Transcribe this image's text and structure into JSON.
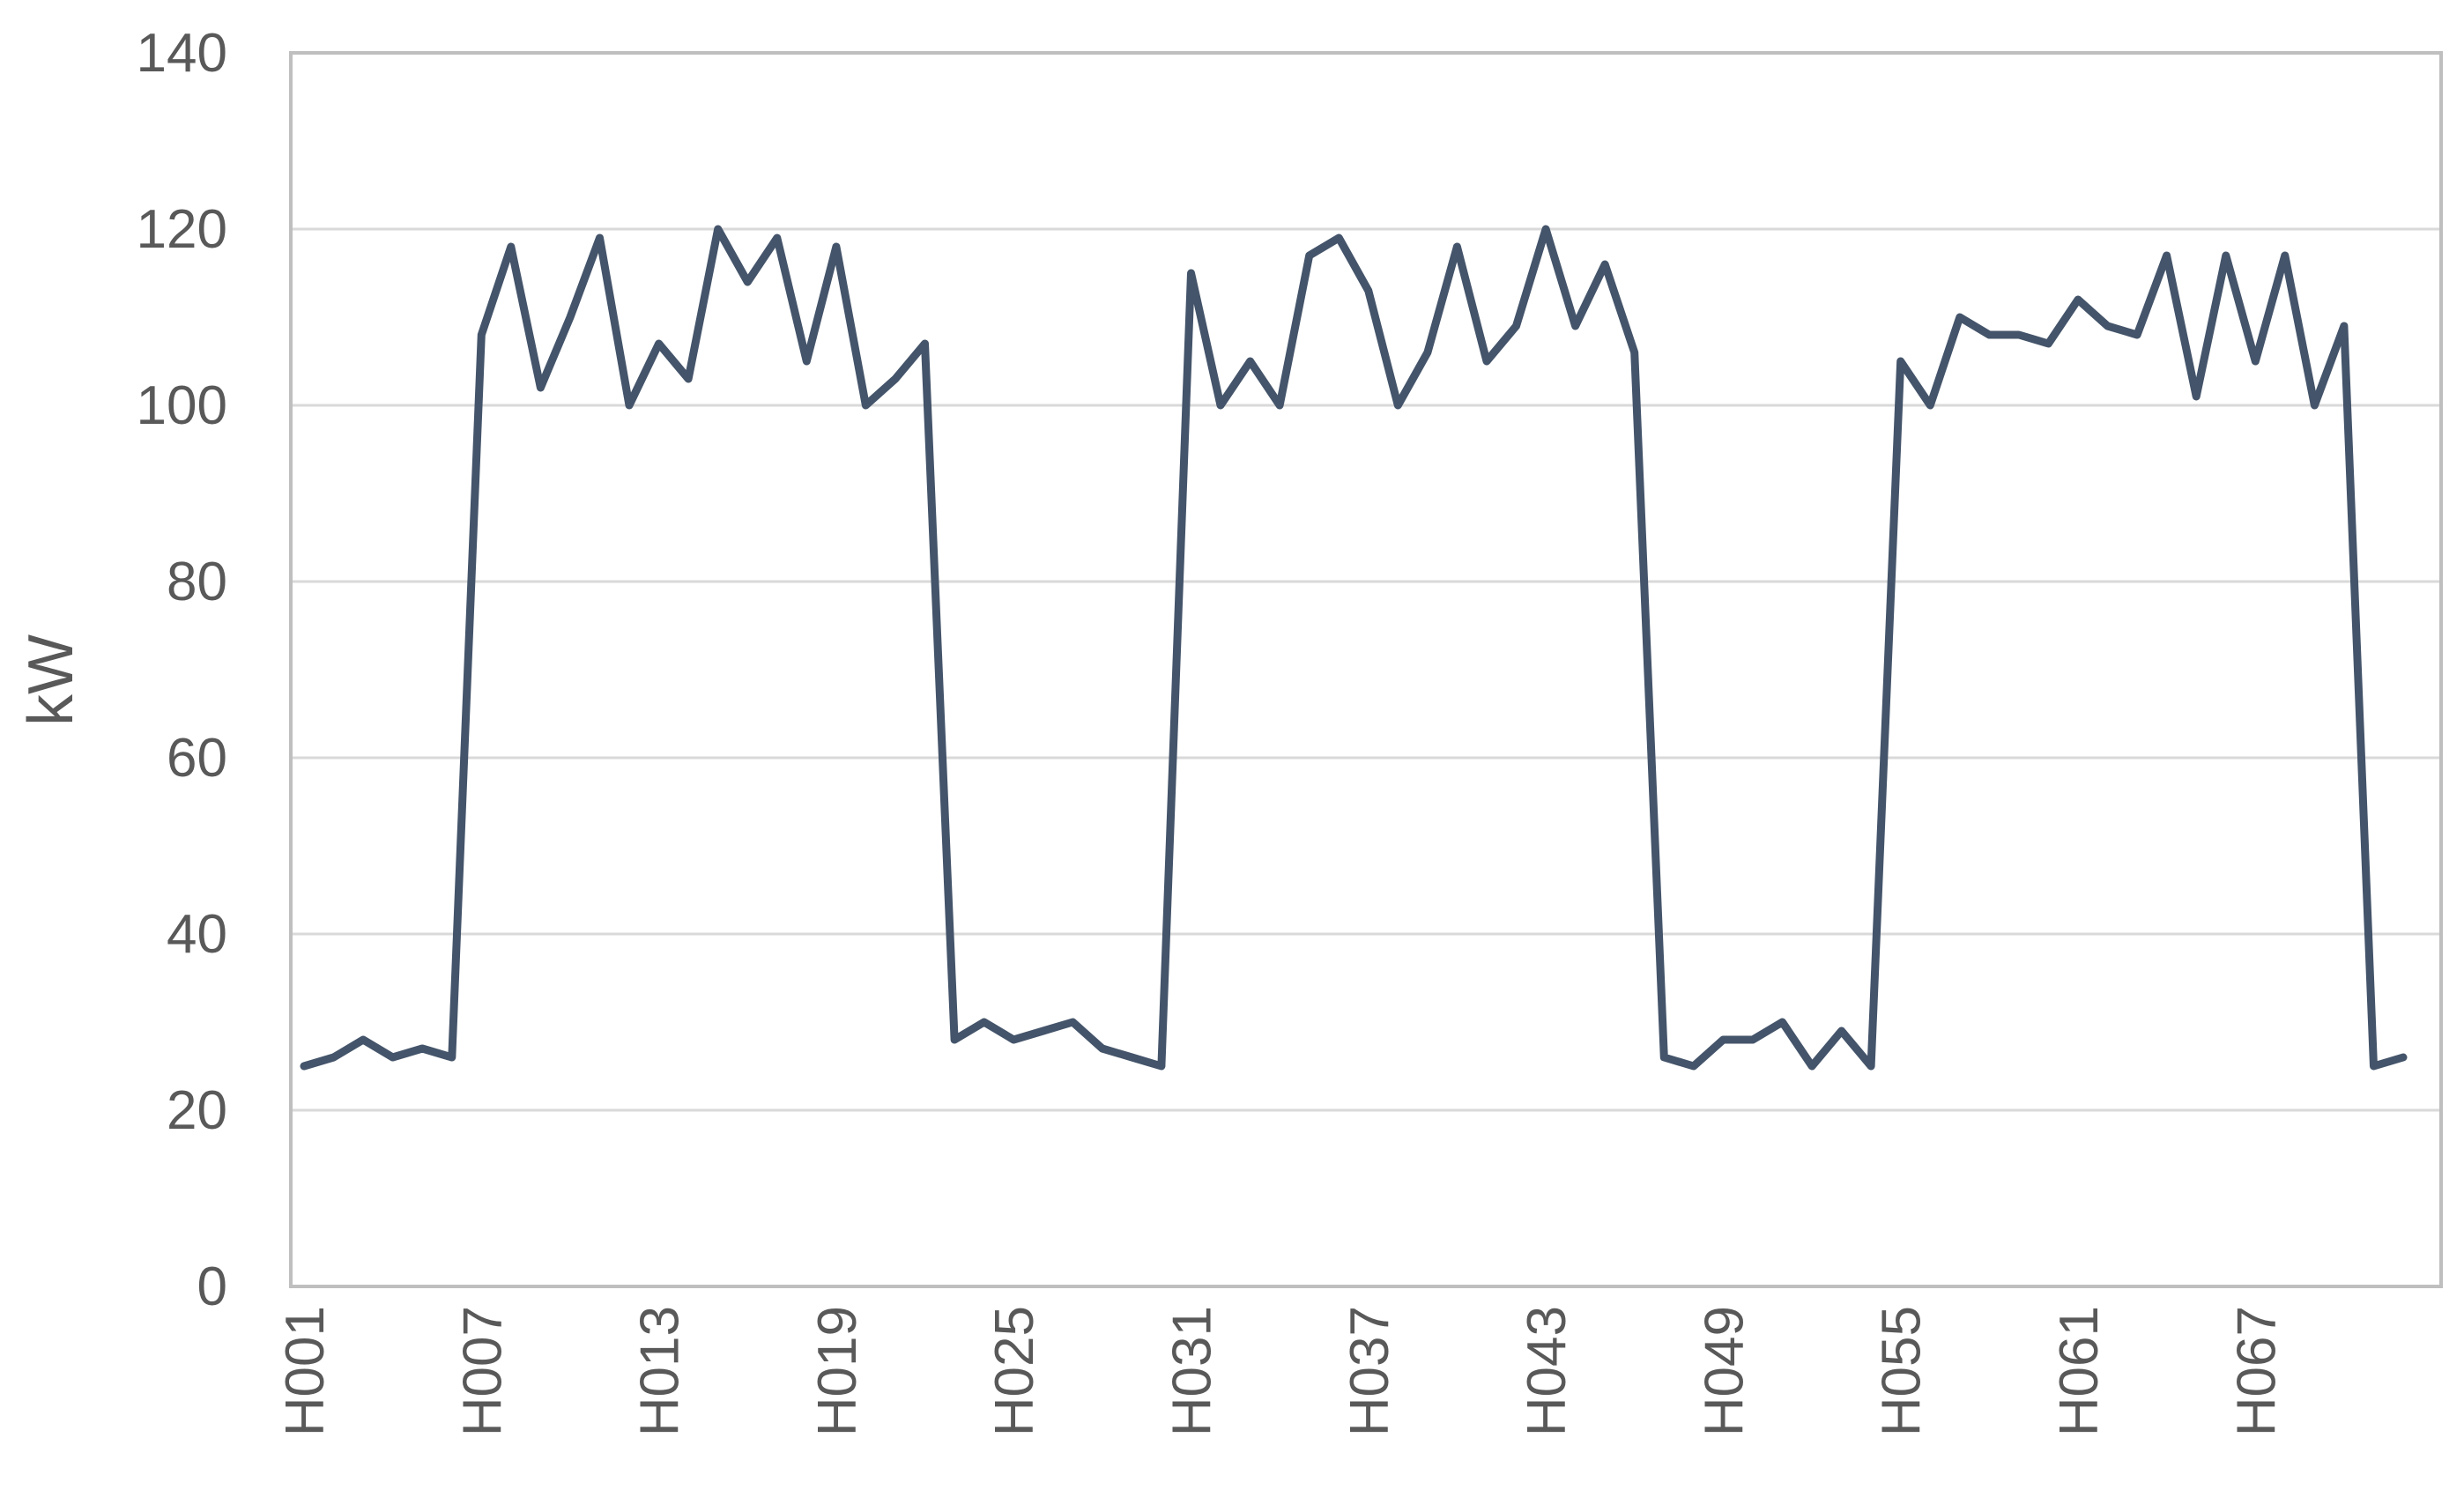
{
  "chart_data": {
    "type": "line",
    "title": "",
    "xlabel": "",
    "ylabel": "kW",
    "ylim": [
      0,
      140
    ],
    "yticks": [
      0,
      20,
      40,
      60,
      80,
      100,
      120,
      140
    ],
    "grid": true,
    "legend": "none",
    "x": [
      "H001",
      "H002",
      "H003",
      "H004",
      "H005",
      "H006",
      "H007",
      "H008",
      "H009",
      "H010",
      "H011",
      "H012",
      "H013",
      "H014",
      "H015",
      "H016",
      "H017",
      "H018",
      "H019",
      "H020",
      "H021",
      "H022",
      "H023",
      "H024",
      "H025",
      "H026",
      "H027",
      "H028",
      "H029",
      "H030",
      "H031",
      "H032",
      "H033",
      "H034",
      "H035",
      "H036",
      "H037",
      "H038",
      "H039",
      "H040",
      "H041",
      "H042",
      "H043",
      "H044",
      "H045",
      "H046",
      "H047",
      "H048",
      "H049",
      "H050",
      "H051",
      "H052",
      "H053",
      "H054",
      "H055",
      "H056",
      "H057",
      "H058",
      "H059",
      "H060",
      "H061",
      "H062",
      "H063",
      "H064",
      "H065",
      "H066",
      "H067",
      "H068",
      "H069",
      "H070",
      "H071",
      "H072"
    ],
    "xtick_labels": [
      "H001",
      "H007",
      "H013",
      "H019",
      "H025",
      "H031",
      "H037",
      "H043",
      "H049",
      "H055",
      "H061",
      "H067"
    ],
    "series": [
      {
        "values": [
          25,
          26,
          28,
          26,
          27,
          26,
          108,
          118,
          102,
          110,
          119,
          100,
          107,
          103,
          120,
          114,
          119,
          105,
          118,
          100,
          103,
          107,
          28,
          30,
          28,
          29,
          30,
          27,
          26,
          25,
          115,
          100,
          105,
          100,
          117,
          119,
          113,
          100,
          106,
          118,
          105,
          109,
          120,
          109,
          116,
          106,
          26,
          25,
          28,
          28,
          30,
          25,
          29,
          25,
          105,
          100,
          110,
          108,
          108,
          107,
          112,
          109,
          108,
          117,
          101,
          117,
          105,
          117,
          100,
          109,
          25,
          26
        ],
        "color": "#44546a"
      }
    ],
    "colors": {
      "line": "#44546a",
      "grid": "#d9d9d9",
      "axis": "#bfbfbf",
      "text": "#595959"
    }
  }
}
